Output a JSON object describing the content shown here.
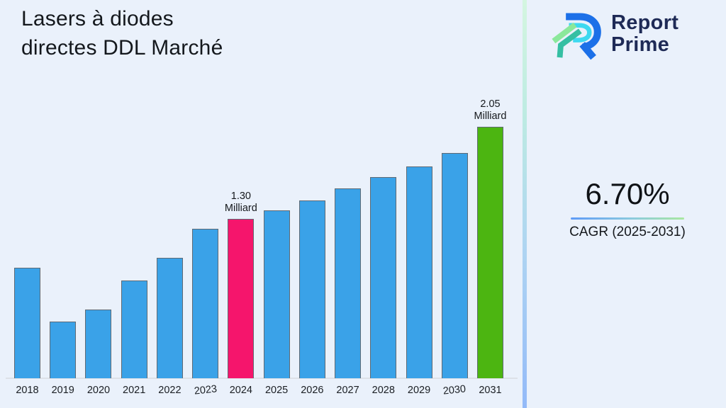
{
  "page": {
    "background": "#EAF1FB"
  },
  "header": {
    "title": "Lasers à diodes\ndirectes DDL Marché"
  },
  "logo": {
    "brand": "Report\nPrime",
    "brand_color": "#1E2A56",
    "mark_colors": {
      "blue": "#1C70E8",
      "cyan": "#3ED9F0",
      "light_green": "#8BE89B",
      "teal": "#35BFA3"
    }
  },
  "cagr": {
    "value": "6.70%",
    "label": "CAGR (2025-2031)"
  },
  "chart_data": {
    "type": "bar",
    "title": "Lasers à diodes directes DDL Marché",
    "xlabel": "",
    "ylabel": "",
    "unit": "Milliard",
    "categories": [
      2018,
      2019,
      2020,
      2021,
      2022,
      2023,
      2024,
      2025,
      2026,
      2027,
      2028,
      2029,
      2030,
      2031
    ],
    "values": [
      0.9,
      0.46,
      0.56,
      0.8,
      0.98,
      1.22,
      1.3,
      1.37,
      1.45,
      1.55,
      1.64,
      1.73,
      1.84,
      2.05
    ],
    "ylim": [
      0,
      2.3
    ],
    "grid": false,
    "legend": "none",
    "bar_color": "#3AA2E8",
    "bar_edge_color": "#5f6a74",
    "highlights": [
      {
        "year": 2024,
        "color": "#F5156C",
        "label": "1.30\nMilliard"
      },
      {
        "year": 2031,
        "color": "#4CB511",
        "label": "2.05\nMilliard"
      }
    ]
  }
}
